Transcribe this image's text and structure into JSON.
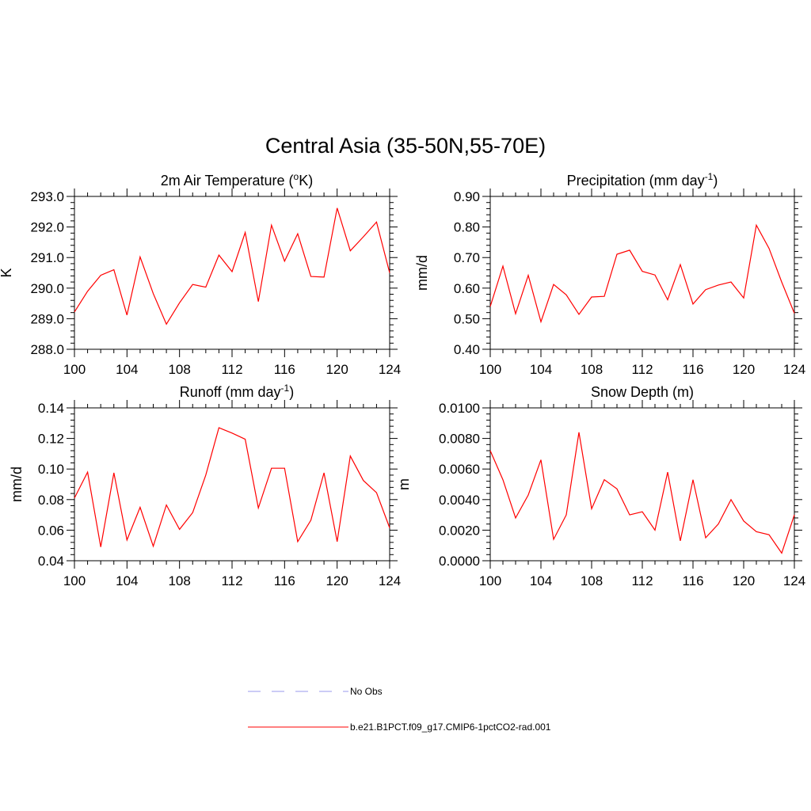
{
  "figure": {
    "title": "Central Asia (35-50N,55-70E)"
  },
  "chart_data": [
    {
      "type": "line",
      "title": "2m Air Temperature (",
      "title_sup": "o",
      "title_tail": "K)",
      "ylabel": "K",
      "xlim": [
        100,
        124
      ],
      "ylim": [
        288.0,
        293.0
      ],
      "xticks": [
        "100",
        "104",
        "108",
        "112",
        "116",
        "120",
        "124"
      ],
      "yticks": [
        "288.0",
        "289.0",
        "290.0",
        "291.0",
        "292.0",
        "293.0"
      ],
      "x": [
        100,
        101,
        102,
        103,
        104,
        105,
        106,
        107,
        108,
        109,
        110,
        111,
        112,
        113,
        114,
        115,
        116,
        117,
        118,
        119,
        120,
        121,
        122,
        123,
        124
      ],
      "series": [
        {
          "values": [
            289.22,
            289.9,
            290.42,
            290.6,
            289.12,
            291.02,
            289.82,
            288.82,
            289.52,
            290.12,
            290.03,
            291.08,
            290.54,
            291.82,
            289.56,
            292.06,
            290.88,
            291.78,
            290.38,
            290.36,
            292.62,
            291.22,
            291.68,
            292.16,
            290.5
          ]
        }
      ]
    },
    {
      "type": "line",
      "title": "Precipitation (mm day",
      "title_sup": "-1",
      "title_tail": ")",
      "ylabel": "mm/d",
      "xlim": [
        100,
        124
      ],
      "ylim": [
        0.4,
        0.9
      ],
      "xticks": [
        "100",
        "104",
        "108",
        "112",
        "116",
        "120",
        "124"
      ],
      "yticks": [
        "0.40",
        "0.50",
        "0.60",
        "0.70",
        "0.80",
        "0.90"
      ],
      "x": [
        100,
        101,
        102,
        103,
        104,
        105,
        106,
        107,
        108,
        109,
        110,
        111,
        112,
        113,
        114,
        115,
        116,
        117,
        118,
        119,
        120,
        121,
        122,
        123,
        124
      ],
      "series": [
        {
          "values": [
            0.54,
            0.672,
            0.516,
            0.642,
            0.49,
            0.612,
            0.578,
            0.514,
            0.571,
            0.573,
            0.711,
            0.724,
            0.655,
            0.643,
            0.562,
            0.677,
            0.548,
            0.595,
            0.61,
            0.62,
            0.568,
            0.806,
            0.73,
            0.62,
            0.518
          ]
        }
      ]
    },
    {
      "type": "line",
      "title": "Runoff (mm day",
      "title_sup": "-1",
      "title_tail": ")",
      "ylabel": "mm/d",
      "xlim": [
        100,
        124
      ],
      "ylim": [
        0.04,
        0.14
      ],
      "xticks": [
        "100",
        "104",
        "108",
        "112",
        "116",
        "120",
        "124"
      ],
      "yticks": [
        "0.04",
        "0.06",
        "0.08",
        "0.10",
        "0.12",
        "0.14"
      ],
      "x": [
        100,
        101,
        102,
        103,
        104,
        105,
        106,
        107,
        108,
        109,
        110,
        111,
        112,
        113,
        114,
        115,
        116,
        117,
        118,
        119,
        120,
        121,
        122,
        123,
        124
      ],
      "series": [
        {
          "values": [
            0.081,
            0.098,
            0.049,
            0.0975,
            0.0535,
            0.075,
            0.0495,
            0.0765,
            0.0605,
            0.0715,
            0.096,
            0.127,
            0.1235,
            0.1195,
            0.0745,
            0.1005,
            0.1005,
            0.0525,
            0.0665,
            0.0975,
            0.0525,
            0.1085,
            0.0925,
            0.0845,
            0.0615
          ]
        }
      ]
    },
    {
      "type": "line",
      "title": "Snow Depth (m)",
      "title_sup": "",
      "title_tail": "",
      "ylabel": "m",
      "xlim": [
        100,
        124
      ],
      "ylim": [
        0.0,
        0.01
      ],
      "xticks": [
        "100",
        "104",
        "108",
        "112",
        "116",
        "120",
        "124"
      ],
      "yticks": [
        "0.0000",
        "0.0020",
        "0.0040",
        "0.0060",
        "0.0080",
        "0.0100"
      ],
      "x": [
        100,
        101,
        102,
        103,
        104,
        105,
        106,
        107,
        108,
        109,
        110,
        111,
        112,
        113,
        114,
        115,
        116,
        117,
        118,
        119,
        120,
        121,
        122,
        123,
        124
      ],
      "series": [
        {
          "values": [
            0.0072,
            0.0053,
            0.0028,
            0.0043,
            0.0066,
            0.0014,
            0.003,
            0.0084,
            0.0034,
            0.0053,
            0.0047,
            0.003,
            0.0032,
            0.002,
            0.0058,
            0.0013,
            0.0053,
            0.0015,
            0.0024,
            0.004,
            0.0026,
            0.0019,
            0.0017,
            0.0005,
            0.003
          ]
        }
      ]
    }
  ],
  "legend": [
    {
      "label": "No Obs",
      "style": "dashed",
      "color": "#9999ee"
    },
    {
      "label": "b.e21.B1PCT.f09_g17.CMIP6-1pctCO2-rad.001",
      "style": "solid",
      "color": "#ff0000"
    }
  ],
  "colors": {
    "series_line": "#ff0000",
    "axis": "#000000"
  }
}
